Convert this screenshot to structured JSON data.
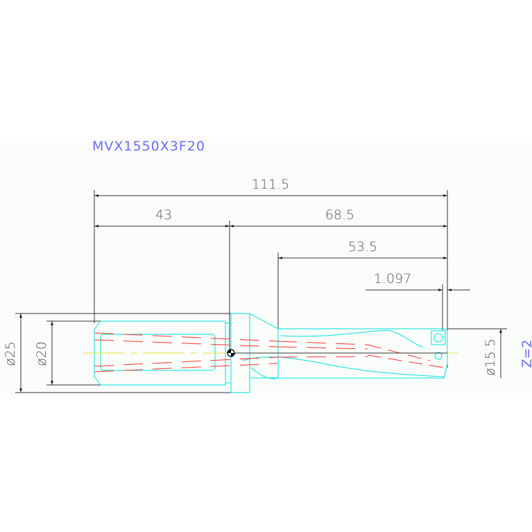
{
  "title": "MVX1550X3F20",
  "dimensions": {
    "overall_length": "111.5",
    "shank_length": "43",
    "body_length": "68.5",
    "flute_length": "53.5",
    "tip_offset": "1.097",
    "shank_flange_dia": "ø25",
    "shank_dia": "ø20",
    "drill_dia": "ø15.5"
  },
  "flutes": "Z=2",
  "colors": {
    "outline": "#00e5e5",
    "hidden": "#ff2020",
    "centerline": "#e8e840",
    "dimension": "#333333",
    "text_blue": "#6b6bff",
    "band": "#fafdfa"
  }
}
